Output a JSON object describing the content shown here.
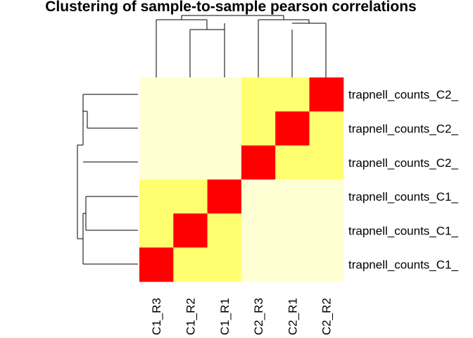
{
  "chart_data": {
    "type": "heatmap",
    "title": "Clustering of sample-to-sample pearson correlations",
    "row_labels": [
      "trapnell_counts_C2_",
      "trapnell_counts_C2_",
      "trapnell_counts_C2_",
      "trapnell_counts_C1_",
      "trapnell_counts_C1_",
      "trapnell_counts_C1_"
    ],
    "col_labels": [
      "C1_R3",
      "C1_R2",
      "C1_R1",
      "C2_R3",
      "C2_R1",
      "C2_R2"
    ],
    "values": [
      [
        0.8,
        0.8,
        0.8,
        0.92,
        0.92,
        1.0
      ],
      [
        0.8,
        0.8,
        0.8,
        0.92,
        1.0,
        0.92
      ],
      [
        0.8,
        0.8,
        0.8,
        1.0,
        0.92,
        0.92
      ],
      [
        0.92,
        0.92,
        1.0,
        0.8,
        0.8,
        0.8
      ],
      [
        0.92,
        1.0,
        0.92,
        0.8,
        0.8,
        0.8
      ],
      [
        1.0,
        0.92,
        0.92,
        0.8,
        0.8,
        0.8
      ]
    ],
    "color_scale": {
      "low": "#ffffd4",
      "mid": "#ffff70",
      "high": "#ff0000"
    },
    "legend": "none",
    "grid": false
  }
}
